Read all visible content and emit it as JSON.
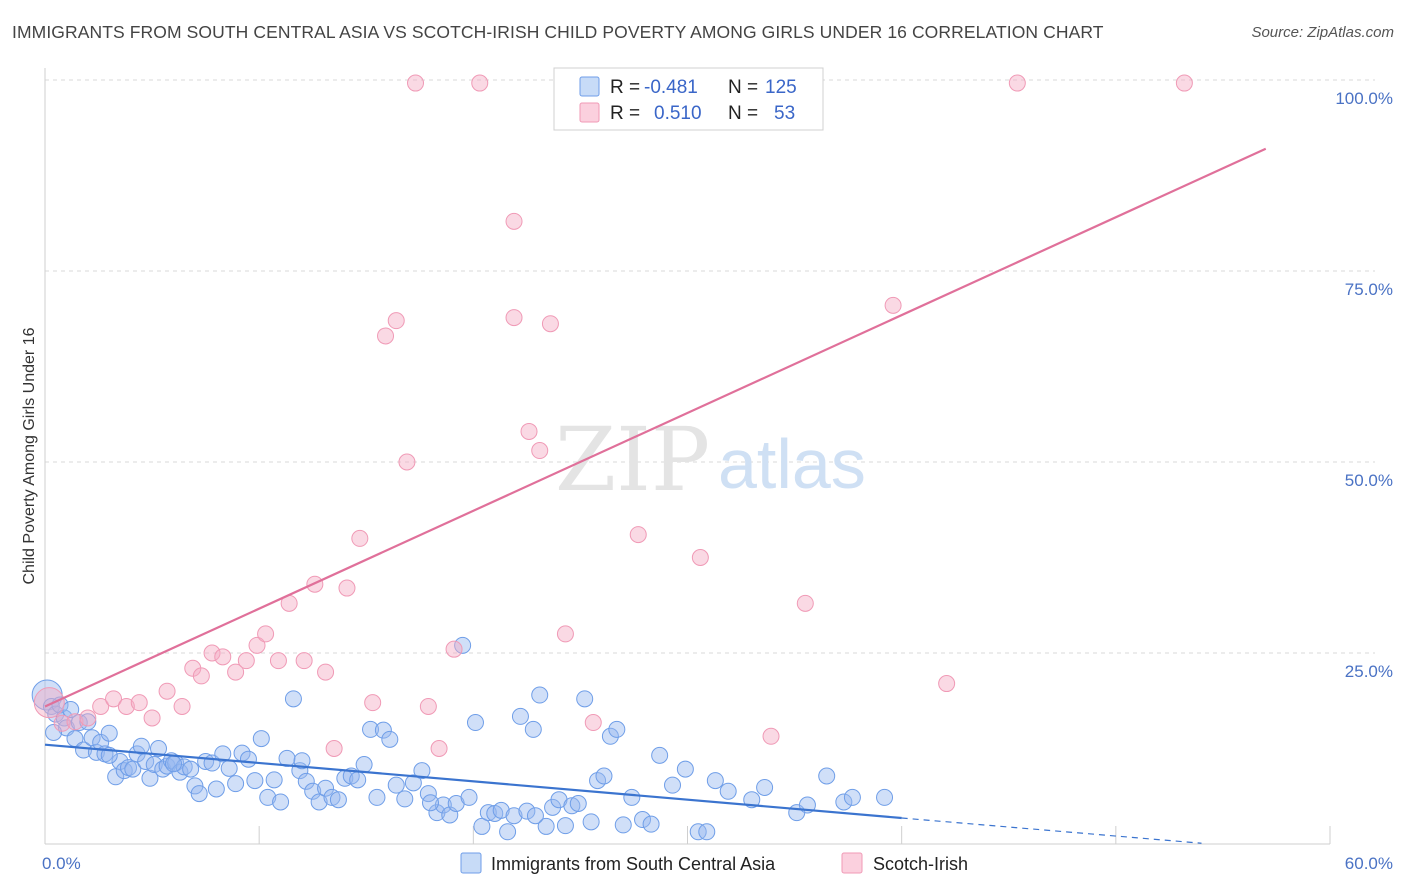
{
  "title": "IMMIGRANTS FROM SOUTH CENTRAL ASIA VS SCOTCH-IRISH CHILD POVERTY AMONG GIRLS UNDER 16 CORRELATION CHART",
  "source": "Source: ZipAtlas.com",
  "watermark": {
    "zip": "ZIP",
    "atlas": "atlas"
  },
  "colors": {
    "blue": "#6f9ee8",
    "blue_line": "#3b74cf",
    "pink": "#f09ab6",
    "pink_line": "#e0709a",
    "grid": "#d9d9d9",
    "tick_text": "#4a72c4"
  },
  "legend": {
    "rows": [
      {
        "r_label": "R =",
        "r_value": "-0.481",
        "n_label": "N =",
        "n_value": "125",
        "color": "blue"
      },
      {
        "r_label": "R =",
        "r_value": "0.510",
        "n_label": "N =",
        "n_value": "53",
        "color": "pink"
      }
    ]
  },
  "bottom_legend": [
    "Immigrants from South Central Asia",
    "Scotch-Irish"
  ],
  "chart_data": {
    "type": "scatter",
    "title": "IMMIGRANTS FROM SOUTH CENTRAL ASIA VS SCOTCH-IRISH CHILD POVERTY AMONG GIRLS UNDER 16 CORRELATION CHART",
    "xlabel": "",
    "ylabel": "Child Poverty Among Girls Under 16",
    "xlim": [
      0,
      60
    ],
    "ylim": [
      0,
      100
    ],
    "x_tick_labels": [
      "0.0%",
      "60.0%"
    ],
    "y_ticks": [
      25,
      50,
      75,
      100
    ],
    "y_tick_labels": [
      "25.0%",
      "50.0%",
      "75.0%",
      "100.0%"
    ],
    "grid": true,
    "legend_position": "top-center",
    "series": [
      {
        "name": "Immigrants from South Central Asia",
        "color": "blue",
        "R": -0.481,
        "N": 125,
        "trend": {
          "x0": 0,
          "y0": 13.0,
          "x1": 40,
          "y1": 3.4,
          "dashed_to_x": 54,
          "dashed_to_y": 0.1
        },
        "points": [
          [
            0.1,
            19.5
          ],
          [
            0.3,
            18.0
          ],
          [
            0.5,
            17.0
          ],
          [
            0.7,
            18.2
          ],
          [
            0.9,
            16.5
          ],
          [
            1.0,
            15.2
          ],
          [
            1.2,
            17.6
          ],
          [
            1.4,
            13.8
          ],
          [
            1.6,
            15.9
          ],
          [
            1.8,
            12.3
          ],
          [
            2.0,
            16.0
          ],
          [
            2.2,
            13.9
          ],
          [
            2.4,
            12.0
          ],
          [
            2.6,
            13.3
          ],
          [
            2.8,
            11.8
          ],
          [
            3.0,
            14.5
          ],
          [
            3.3,
            8.8
          ],
          [
            3.5,
            10.8
          ],
          [
            3.7,
            9.6
          ],
          [
            3.9,
            10.0
          ],
          [
            4.1,
            9.8
          ],
          [
            4.3,
            11.8
          ],
          [
            4.5,
            12.8
          ],
          [
            4.7,
            10.8
          ],
          [
            4.9,
            8.6
          ],
          [
            5.1,
            10.4
          ],
          [
            5.3,
            12.5
          ],
          [
            5.5,
            9.8
          ],
          [
            5.7,
            10.2
          ],
          [
            5.9,
            10.9
          ],
          [
            6.1,
            10.6
          ],
          [
            6.3,
            9.4
          ],
          [
            6.5,
            10.1
          ],
          [
            6.8,
            9.8
          ],
          [
            7.0,
            7.6
          ],
          [
            7.2,
            6.6
          ],
          [
            7.5,
            10.8
          ],
          [
            7.8,
            10.6
          ],
          [
            8.0,
            7.2
          ],
          [
            8.3,
            11.8
          ],
          [
            8.6,
            9.9
          ],
          [
            8.9,
            7.9
          ],
          [
            9.2,
            11.9
          ],
          [
            9.5,
            11.1
          ],
          [
            9.8,
            8.3
          ],
          [
            10.1,
            13.8
          ],
          [
            10.4,
            6.1
          ],
          [
            10.7,
            8.4
          ],
          [
            11.0,
            5.5
          ],
          [
            11.3,
            11.2
          ],
          [
            11.6,
            19.0
          ],
          [
            11.9,
            9.6
          ],
          [
            12.2,
            8.2
          ],
          [
            12.5,
            6.9
          ],
          [
            12.8,
            5.5
          ],
          [
            13.1,
            7.3
          ],
          [
            13.4,
            6.1
          ],
          [
            13.7,
            5.8
          ],
          [
            14.0,
            8.6
          ],
          [
            14.3,
            8.9
          ],
          [
            14.6,
            8.4
          ],
          [
            14.9,
            10.4
          ],
          [
            15.2,
            15.0
          ],
          [
            15.5,
            6.1
          ],
          [
            15.8,
            14.9
          ],
          [
            16.1,
            13.7
          ],
          [
            16.4,
            7.7
          ],
          [
            16.8,
            5.9
          ],
          [
            17.2,
            8.0
          ],
          [
            17.6,
            9.6
          ],
          [
            17.9,
            6.6
          ],
          [
            18.3,
            4.1
          ],
          [
            18.6,
            5.1
          ],
          [
            18.9,
            3.8
          ],
          [
            19.2,
            5.3
          ],
          [
            19.5,
            26.0
          ],
          [
            19.8,
            6.1
          ],
          [
            20.1,
            15.9
          ],
          [
            20.4,
            2.3
          ],
          [
            20.7,
            4.1
          ],
          [
            21.0,
            4.0
          ],
          [
            21.3,
            4.4
          ],
          [
            21.6,
            1.6
          ],
          [
            21.9,
            3.7
          ],
          [
            22.2,
            16.7
          ],
          [
            22.5,
            4.3
          ],
          [
            22.8,
            15.0
          ],
          [
            23.1,
            19.5
          ],
          [
            23.4,
            2.3
          ],
          [
            23.7,
            4.8
          ],
          [
            24.0,
            5.8
          ],
          [
            24.3,
            2.4
          ],
          [
            24.6,
            5.0
          ],
          [
            24.9,
            5.3
          ],
          [
            25.2,
            19.0
          ],
          [
            25.5,
            2.9
          ],
          [
            25.8,
            8.3
          ],
          [
            26.1,
            8.9
          ],
          [
            26.4,
            14.1
          ],
          [
            26.7,
            15.0
          ],
          [
            27.0,
            2.5
          ],
          [
            27.4,
            6.1
          ],
          [
            27.9,
            3.2
          ],
          [
            28.3,
            2.6
          ],
          [
            28.7,
            11.6
          ],
          [
            29.3,
            7.7
          ],
          [
            29.9,
            9.8
          ],
          [
            30.5,
            1.6
          ],
          [
            30.9,
            1.6
          ],
          [
            31.3,
            8.3
          ],
          [
            31.9,
            6.9
          ],
          [
            33.0,
            5.8
          ],
          [
            33.6,
            7.4
          ],
          [
            35.1,
            4.1
          ],
          [
            35.6,
            5.1
          ],
          [
            36.5,
            8.9
          ],
          [
            37.3,
            5.5
          ],
          [
            37.7,
            6.1
          ],
          [
            39.2,
            6.1
          ],
          [
            18.0,
            5.4
          ],
          [
            22.9,
            3.7
          ],
          [
            12.0,
            10.9
          ],
          [
            6.0,
            10.5
          ],
          [
            3.0,
            11.6
          ],
          [
            0.4,
            14.6
          ]
        ]
      },
      {
        "name": "Scotch-Irish",
        "color": "pink",
        "R": 0.51,
        "N": 53,
        "trend": {
          "x0": 0,
          "y0": 18.0,
          "x1": 57,
          "y1": 91.0
        },
        "points": [
          [
            0.2,
            18.5
          ],
          [
            0.8,
            15.8
          ],
          [
            1.4,
            16.0
          ],
          [
            2.0,
            16.5
          ],
          [
            2.6,
            18.0
          ],
          [
            3.2,
            19.0
          ],
          [
            3.8,
            18.0
          ],
          [
            4.4,
            18.5
          ],
          [
            5.0,
            16.5
          ],
          [
            5.7,
            20.0
          ],
          [
            6.4,
            18.0
          ],
          [
            6.9,
            23.0
          ],
          [
            7.3,
            22.0
          ],
          [
            7.8,
            25.0
          ],
          [
            8.3,
            24.5
          ],
          [
            8.9,
            22.5
          ],
          [
            9.4,
            24.0
          ],
          [
            9.9,
            26.0
          ],
          [
            10.3,
            27.5
          ],
          [
            10.9,
            24.0
          ],
          [
            11.4,
            31.5
          ],
          [
            12.1,
            24.0
          ],
          [
            12.6,
            34.0
          ],
          [
            13.1,
            22.5
          ],
          [
            13.5,
            12.5
          ],
          [
            14.1,
            33.5
          ],
          [
            14.7,
            40.0
          ],
          [
            15.3,
            18.5
          ],
          [
            15.9,
            66.5
          ],
          [
            16.4,
            68.5
          ],
          [
            16.9,
            50.0
          ],
          [
            17.3,
            99.6
          ],
          [
            17.9,
            18.0
          ],
          [
            18.4,
            12.5
          ],
          [
            19.1,
            25.5
          ],
          [
            20.3,
            99.6
          ],
          [
            21.9,
            81.5
          ],
          [
            21.9,
            68.9
          ],
          [
            22.6,
            54.0
          ],
          [
            23.1,
            51.5
          ],
          [
            23.6,
            68.1
          ],
          [
            24.3,
            27.5
          ],
          [
            25.6,
            15.9
          ],
          [
            27.7,
            40.5
          ],
          [
            28.9,
            97.0
          ],
          [
            29.9,
            99.6
          ],
          [
            30.6,
            37.5
          ],
          [
            33.9,
            14.1
          ],
          [
            35.5,
            31.5
          ],
          [
            39.6,
            70.5
          ],
          [
            42.1,
            21.0
          ],
          [
            45.4,
            99.6
          ],
          [
            53.2,
            99.6
          ]
        ]
      }
    ]
  }
}
